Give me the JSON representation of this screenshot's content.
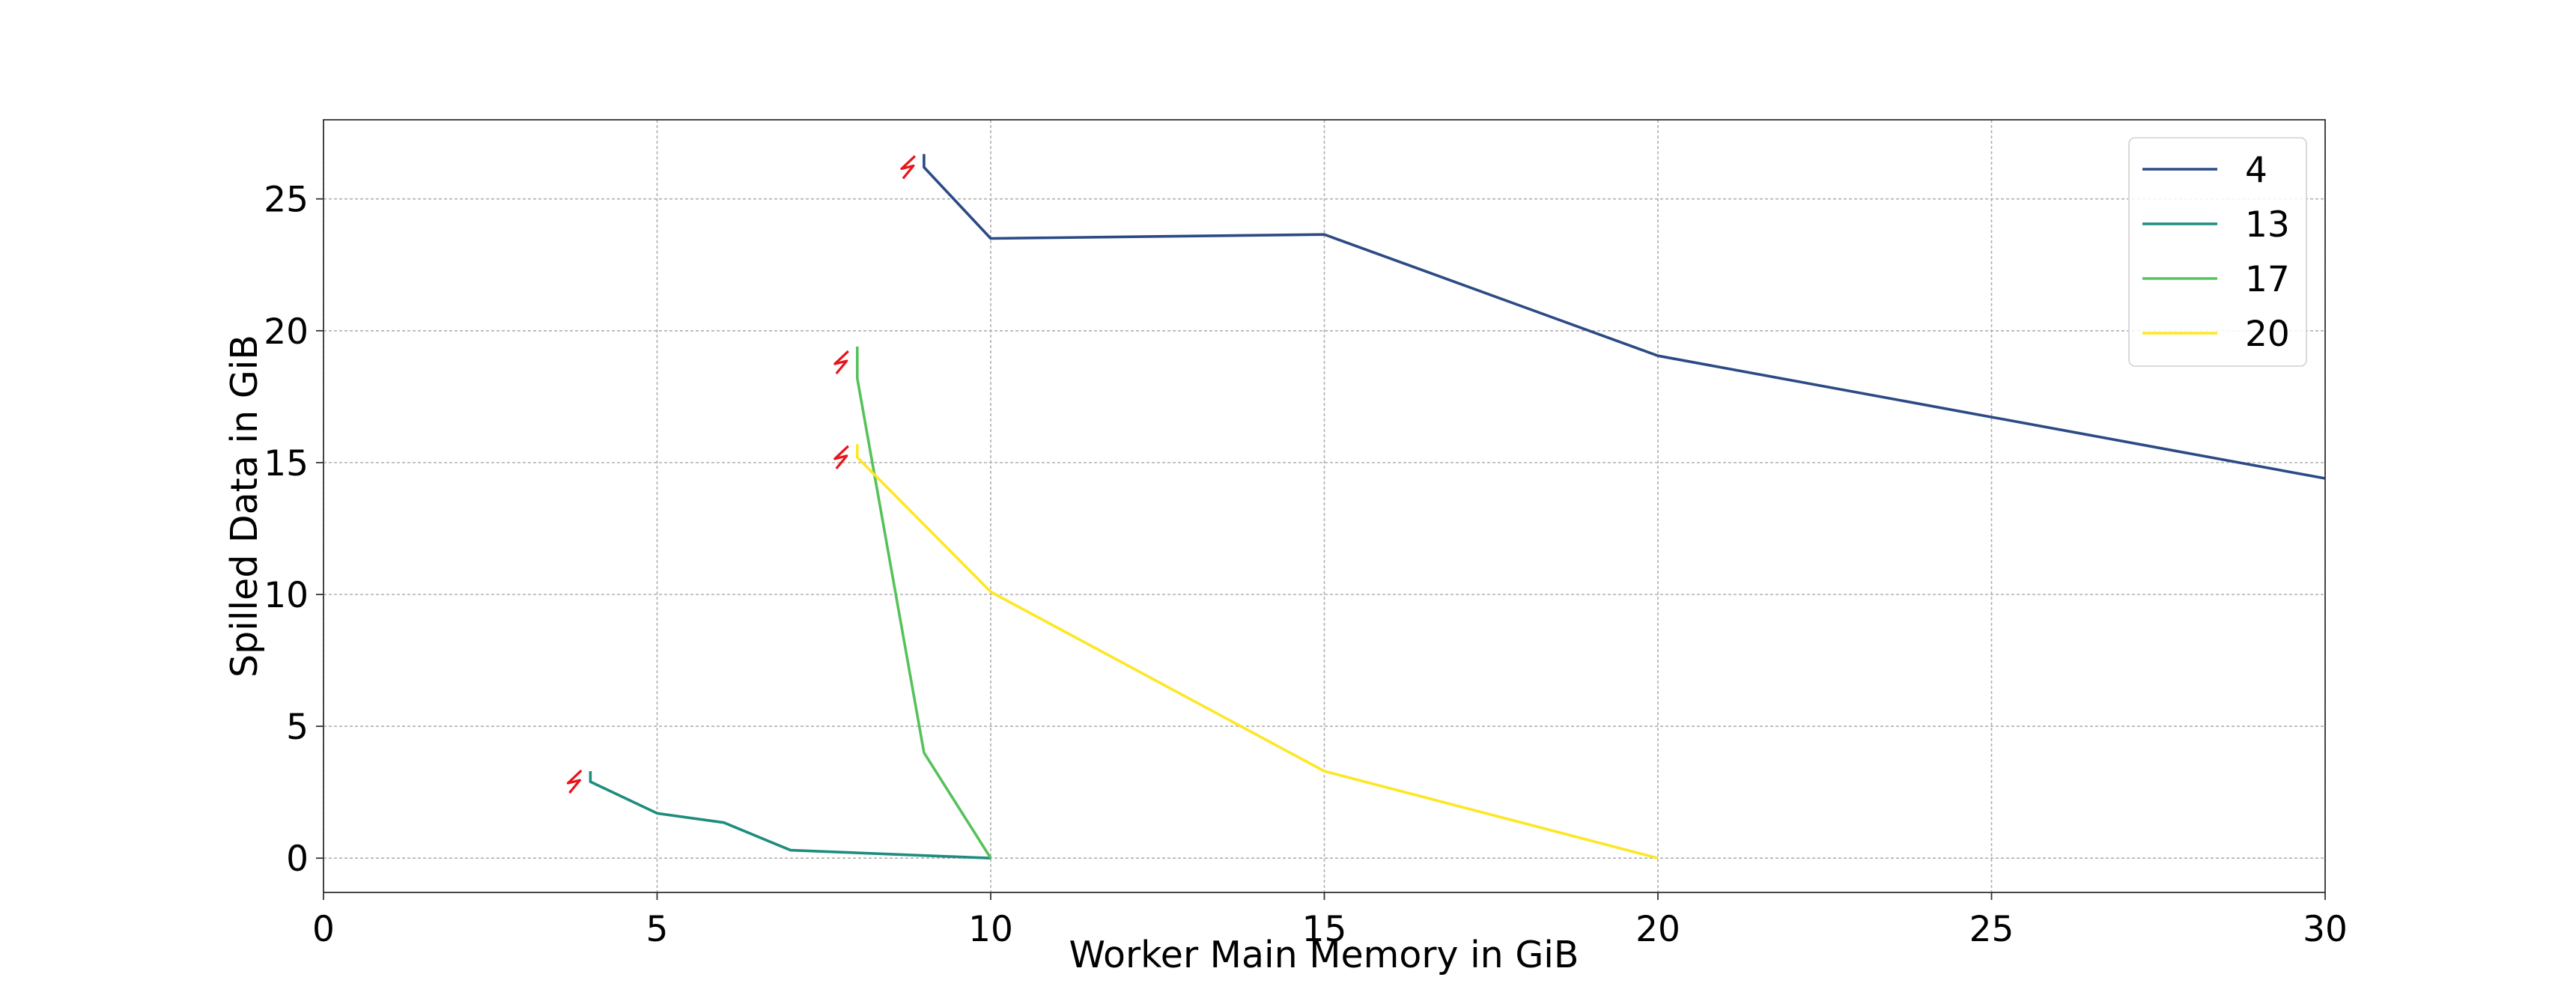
{
  "chart_data": {
    "type": "line",
    "title": "",
    "xlabel": "Worker Main Memory in GiB",
    "ylabel": "Spilled Data in GiB",
    "xlim": [
      0,
      30
    ],
    "ylim": [
      -1.3,
      28
    ],
    "xticks": [
      0,
      5,
      10,
      15,
      20,
      25,
      30
    ],
    "yticks": [
      0,
      5,
      10,
      15,
      20,
      25
    ],
    "grid": true,
    "legend_position": "top-right",
    "series": [
      {
        "name": "4",
        "color": "#2c4a85",
        "x": [
          9,
          9,
          10,
          15,
          20,
          30
        ],
        "y": [
          26.7,
          26.2,
          23.5,
          23.65,
          19.05,
          14.4
        ],
        "failure_marker": {
          "x": 9,
          "y": 26.2
        }
      },
      {
        "name": "13",
        "color": "#1e8c7e",
        "x": [
          4,
          4,
          5,
          6,
          7,
          10
        ],
        "y": [
          3.3,
          2.9,
          1.7,
          1.35,
          0.3,
          0.0
        ],
        "failure_marker": {
          "x": 4,
          "y": 2.9
        }
      },
      {
        "name": "17",
        "color": "#55c25a",
        "x": [
          8,
          8,
          9,
          10
        ],
        "y": [
          19.4,
          18.2,
          4.0,
          0.0
        ],
        "failure_marker": {
          "x": 8,
          "y": 18.8
        }
      },
      {
        "name": "20",
        "color": "#fde725",
        "x": [
          8,
          8,
          10,
          15,
          20
        ],
        "y": [
          15.7,
          15.2,
          10.1,
          3.3,
          0.0
        ],
        "failure_marker": {
          "x": 8,
          "y": 15.2
        }
      }
    ]
  }
}
